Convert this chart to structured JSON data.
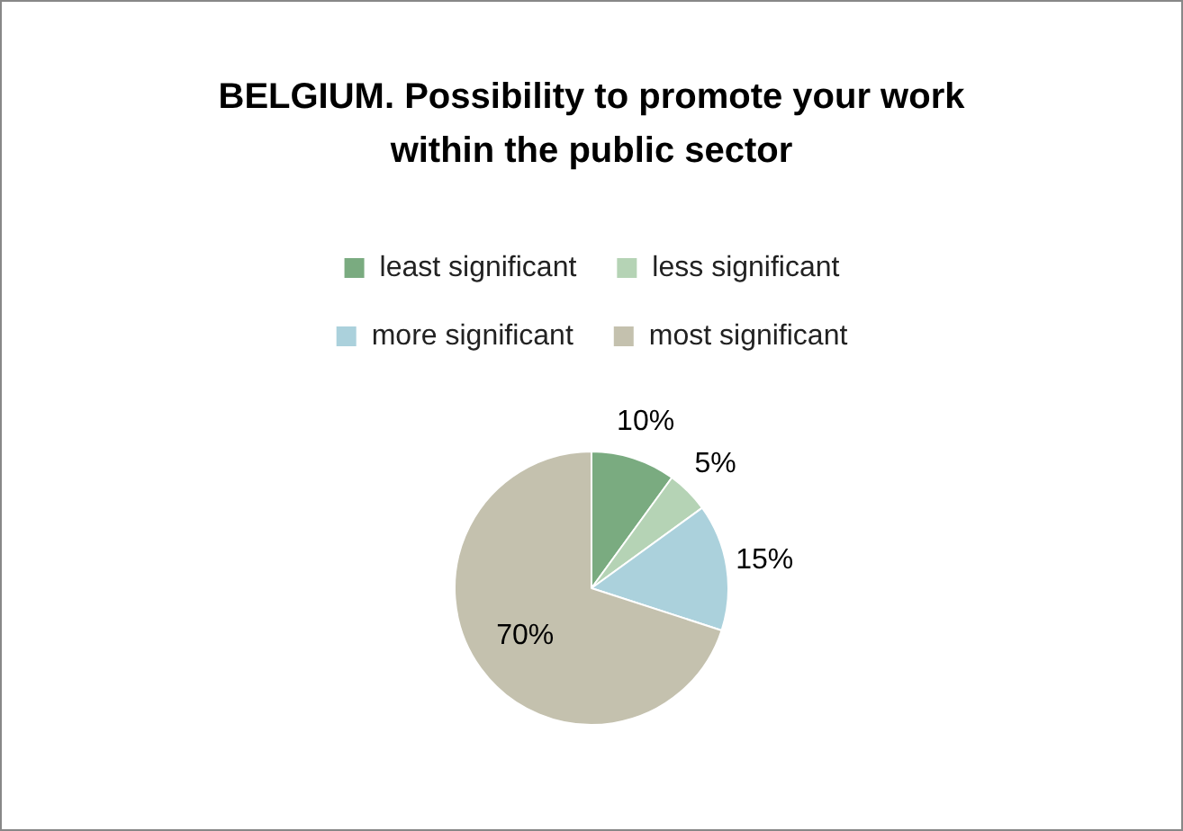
{
  "chart_data": {
    "type": "pie",
    "title": "BELGIUM. Possibility to promote your work within the public sector",
    "categories": [
      "least significant",
      "less significant",
      "more significant",
      "most significant"
    ],
    "values": [
      10,
      5,
      15,
      70
    ],
    "colors": [
      "#7aab80",
      "#b5d3b5",
      "#abd1dc",
      "#c4c1ae"
    ],
    "value_labels": [
      "10%",
      "5%",
      "15%",
      "70%"
    ],
    "legend": "top"
  }
}
